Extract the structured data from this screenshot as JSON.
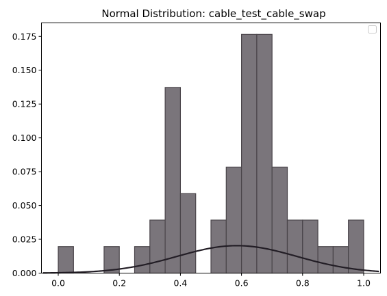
{
  "chart_data": {
    "type": "bar",
    "title": "Normal Distribution: cable_test_cable_swap",
    "xlabel": "",
    "ylabel": "",
    "xlim": [
      -0.055,
      1.055
    ],
    "ylim": [
      0,
      0.185
    ],
    "x_ticks": [
      {
        "value": 0.0,
        "label": "0.0"
      },
      {
        "value": 0.2,
        "label": "0.2"
      },
      {
        "value": 0.4,
        "label": "0.4"
      },
      {
        "value": 0.6,
        "label": "0.6"
      },
      {
        "value": 0.8,
        "label": "0.8"
      },
      {
        "value": 1.0,
        "label": "1.0"
      }
    ],
    "y_ticks": [
      {
        "value": 0.0,
        "label": "0.000"
      },
      {
        "value": 0.025,
        "label": "0.025"
      },
      {
        "value": 0.05,
        "label": "0.050"
      },
      {
        "value": 0.075,
        "label": "0.075"
      },
      {
        "value": 0.1,
        "label": "0.100"
      },
      {
        "value": 0.125,
        "label": "0.125"
      },
      {
        "value": 0.15,
        "label": "0.150"
      },
      {
        "value": 0.175,
        "label": "0.175"
      }
    ],
    "grid": false,
    "legend": "top-right (empty)",
    "histogram": {
      "bin_edges": [
        0.0,
        0.05,
        0.1,
        0.15,
        0.2,
        0.25,
        0.3,
        0.35,
        0.4,
        0.45,
        0.5,
        0.55,
        0.6,
        0.65,
        0.7,
        0.75,
        0.8,
        0.85,
        0.9,
        0.95,
        1.0
      ],
      "values": [
        0.0196,
        0.0,
        0.0,
        0.0196,
        0.0,
        0.0196,
        0.0392,
        0.1373,
        0.0588,
        0.0,
        0.0392,
        0.0784,
        0.1765,
        0.1765,
        0.0784,
        0.0392,
        0.0392,
        0.0196,
        0.0196,
        0.0392
      ],
      "fill_color": "#7a757b",
      "edge_color": "#4a454a"
    },
    "normal_curve": {
      "mean": 0.585,
      "peak": 0.0203,
      "x_range": [
        -0.05,
        1.05
      ],
      "color": "#231e26"
    }
  }
}
